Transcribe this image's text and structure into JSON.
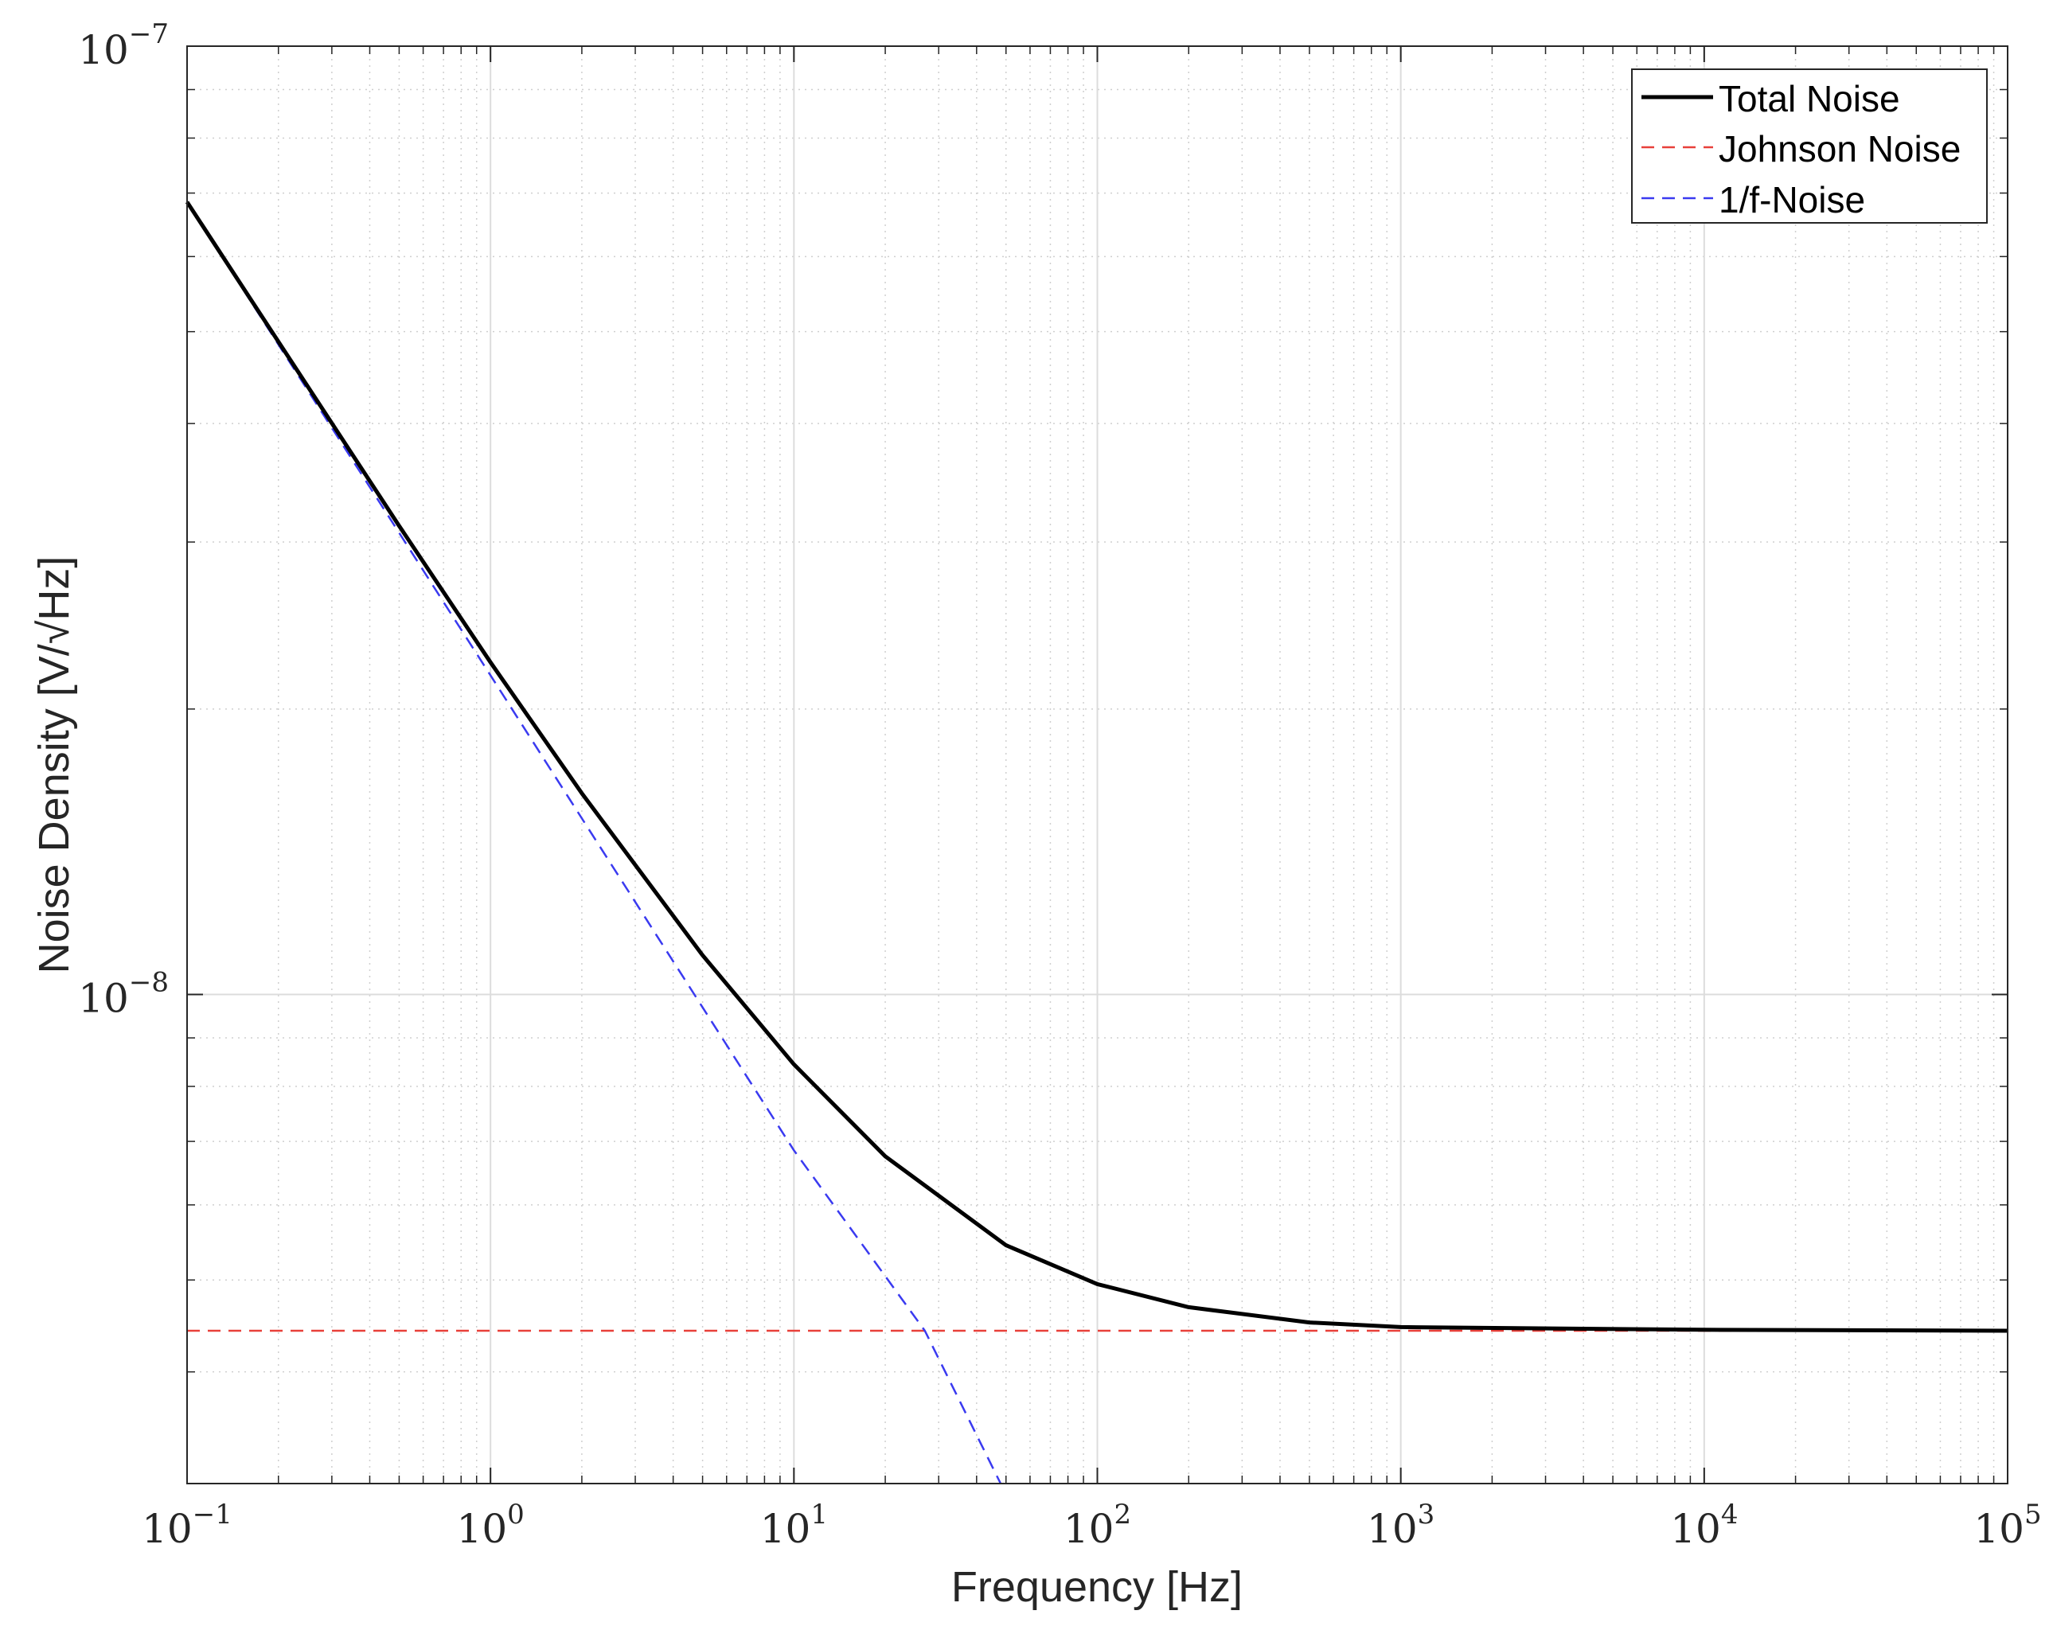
{
  "chart_data": {
    "type": "line",
    "title": "",
    "xlabel": "Frequency [Hz]",
    "ylabel": "Noise Density [V/√Hz]",
    "xscale": "log",
    "yscale": "log",
    "xlim": [
      0.1,
      100000
    ],
    "ylim": [
      3.05e-09,
      1e-07
    ],
    "grid": true,
    "minor_grid": true,
    "legend_position": "top-right",
    "x_ticks": [
      {
        "value": 0.1,
        "base": "10",
        "exp": "−1"
      },
      {
        "value": 1,
        "base": "10",
        "exp": "0"
      },
      {
        "value": 10,
        "base": "10",
        "exp": "1"
      },
      {
        "value": 100,
        "base": "10",
        "exp": "2"
      },
      {
        "value": 1000,
        "base": "10",
        "exp": "3"
      },
      {
        "value": 10000,
        "base": "10",
        "exp": "4"
      },
      {
        "value": 100000,
        "base": "10",
        "exp": "5"
      }
    ],
    "y_ticks": [
      {
        "value": 1e-08,
        "base": "10",
        "exp": "−8"
      },
      {
        "value": 1e-07,
        "base": "10",
        "exp": "−7"
      }
    ],
    "series": [
      {
        "name": "Total Noise",
        "color": "#000000",
        "style": "solid",
        "x": [
          0.1,
          0.2,
          0.5,
          1,
          2,
          5,
          10,
          20,
          50,
          100,
          200,
          500,
          1000,
          10000,
          100000
        ],
        "y": [
          6.85e-08,
          4.88e-08,
          3.12e-08,
          2.24e-08,
          1.63e-08,
          1.1e-08,
          8.44e-09,
          6.75e-09,
          5.44e-09,
          4.95e-09,
          4.68e-09,
          4.51e-09,
          4.46e-09,
          4.43e-09,
          4.42e-09
        ]
      },
      {
        "name": "Johnson Noise",
        "color": "#e8403a",
        "style": "dashed",
        "x": [
          0.1,
          100000
        ],
        "y": [
          4.42e-09,
          4.42e-09
        ]
      },
      {
        "name": "1/f-Noise",
        "color": "#3a3af0",
        "style": "dashed",
        "x": [
          0.1,
          1,
          10,
          27,
          48
        ],
        "y": [
          6.85e-08,
          2.17e-08,
          6.85e-09,
          4.42e-09,
          3.05e-09
        ]
      }
    ]
  }
}
